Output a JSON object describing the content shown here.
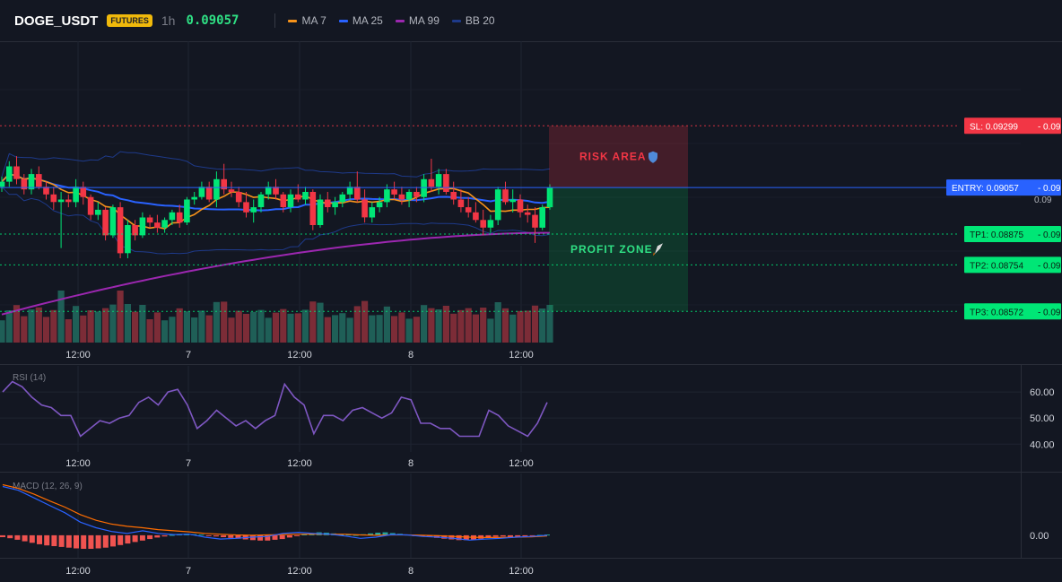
{
  "header": {
    "symbol": "DOGE_USDT",
    "badge": "FUTURES",
    "timeframe": "1h",
    "price": "0.09057",
    "indicators": [
      {
        "label": "MA 7",
        "color": "#f7931a"
      },
      {
        "label": "MA 25",
        "color": "#2962ff"
      },
      {
        "label": "MA 99",
        "color": "#9c27b0"
      },
      {
        "label": "BB 20",
        "color": "#1e3a8a"
      }
    ]
  },
  "time_labels": [
    "12:00",
    "7",
    "12:00",
    "8",
    "12:00"
  ],
  "levels": {
    "sl": {
      "label": "SL: 0.09299",
      "short": "0.09",
      "value": 0.09299,
      "color": "#f23645"
    },
    "entry": {
      "label": "ENTRY: 0.09057",
      "short": "0.09",
      "value": 0.09057,
      "color": "#2962ff"
    },
    "tp1": {
      "label": "TP1: 0.08875",
      "short": "0.09",
      "value": 0.08875,
      "color": "#00e676"
    },
    "tp2": {
      "label": "TP2: 0.08754",
      "short": "0.09",
      "value": 0.08754,
      "color": "#00e676"
    },
    "tp3": {
      "label": "TP3: 0.08572",
      "short": "0.09",
      "value": 0.08572,
      "color": "#00e676"
    }
  },
  "price_axis_label": "0.09",
  "zones": {
    "risk_label": "RISK AREA",
    "risk_icon": "shield-icon",
    "profit_label": "PROFIT ZONE",
    "profit_icon": "rocket-icon"
  },
  "rsi": {
    "title": "RSI (14)",
    "ticks": [
      "60.00",
      "50.00",
      "40.00"
    ],
    "tick_values": [
      60,
      50,
      40
    ],
    "ylim": [
      37,
      70
    ],
    "color": "#7e57c2"
  },
  "macd": {
    "title": "MACD (12, 26, 9)",
    "ticks": [
      "0.00"
    ],
    "ylim": [
      -0.0006,
      0.0016
    ],
    "macd_color": "#2962ff",
    "signal_color": "#ff6d00",
    "hist_neg_color": "#ef5350",
    "hist_pos_color": "#26a69a"
  },
  "chart_data": [
    {
      "type": "candlestick",
      "title": "DOGE_USDT 1h",
      "ylim": [
        0.0845,
        0.0963
      ],
      "up_color": "#00e676",
      "down_color": "#f23645",
      "candles": [
        [
          0.0906,
          0.091,
          0.0904,
          0.0908
        ],
        [
          0.0908,
          0.0916,
          0.0906,
          0.0914
        ],
        [
          0.0914,
          0.0918,
          0.0907,
          0.0909
        ],
        [
          0.0909,
          0.0911,
          0.0903,
          0.0905
        ],
        [
          0.0905,
          0.0913,
          0.0903,
          0.0911
        ],
        [
          0.0911,
          0.0914,
          0.0905,
          0.0906
        ],
        [
          0.0906,
          0.0908,
          0.0901,
          0.0903
        ],
        [
          0.0903,
          0.0906,
          0.0897,
          0.09
        ],
        [
          0.09,
          0.0904,
          0.0882,
          0.0901
        ],
        [
          0.0901,
          0.0903,
          0.0898,
          0.09
        ],
        [
          0.09,
          0.0909,
          0.0898,
          0.0906
        ],
        [
          0.0906,
          0.0908,
          0.0899,
          0.0902
        ],
        [
          0.0902,
          0.0903,
          0.0893,
          0.0895
        ],
        [
          0.0895,
          0.09,
          0.0893,
          0.0897
        ],
        [
          0.0897,
          0.0898,
          0.0885,
          0.0887
        ],
        [
          0.0887,
          0.0899,
          0.0886,
          0.0898
        ],
        [
          0.0898,
          0.09,
          0.0878,
          0.088
        ],
        [
          0.088,
          0.0893,
          0.0878,
          0.0891
        ],
        [
          0.0891,
          0.0893,
          0.0885,
          0.0887
        ],
        [
          0.0887,
          0.0896,
          0.0886,
          0.0894
        ],
        [
          0.0894,
          0.0895,
          0.089,
          0.0892
        ],
        [
          0.0892,
          0.0895,
          0.0888,
          0.089
        ],
        [
          0.089,
          0.0894,
          0.0888,
          0.0893
        ],
        [
          0.0893,
          0.0897,
          0.0891,
          0.0896
        ],
        [
          0.0896,
          0.0899,
          0.089,
          0.0892
        ],
        [
          0.0892,
          0.0902,
          0.0891,
          0.0901
        ],
        [
          0.0901,
          0.0904,
          0.0899,
          0.0902
        ],
        [
          0.0902,
          0.0908,
          0.0901,
          0.0906
        ],
        [
          0.0906,
          0.0908,
          0.09,
          0.0901
        ],
        [
          0.0901,
          0.0912,
          0.0898,
          0.0909
        ],
        [
          0.0909,
          0.0915,
          0.0903,
          0.0905
        ],
        [
          0.0905,
          0.0908,
          0.0902,
          0.0904
        ],
        [
          0.0904,
          0.0906,
          0.0898,
          0.09
        ],
        [
          0.09,
          0.0904,
          0.0894,
          0.0896
        ],
        [
          0.0896,
          0.0901,
          0.0892,
          0.0898
        ],
        [
          0.0898,
          0.0904,
          0.0896,
          0.0903
        ],
        [
          0.0903,
          0.0908,
          0.0901,
          0.0906
        ],
        [
          0.0906,
          0.0909,
          0.0901,
          0.0903
        ],
        [
          0.0903,
          0.0904,
          0.0896,
          0.0898
        ],
        [
          0.0898,
          0.0905,
          0.0896,
          0.0903
        ],
        [
          0.0903,
          0.0907,
          0.09,
          0.0901
        ],
        [
          0.0901,
          0.0906,
          0.0899,
          0.0904
        ],
        [
          0.0904,
          0.0905,
          0.0889,
          0.0891
        ],
        [
          0.0891,
          0.0903,
          0.089,
          0.0901
        ],
        [
          0.0901,
          0.0904,
          0.0896,
          0.0898
        ],
        [
          0.0898,
          0.0902,
          0.0895,
          0.09
        ],
        [
          0.09,
          0.0904,
          0.0898,
          0.0903
        ],
        [
          0.0903,
          0.0908,
          0.0901,
          0.0906
        ],
        [
          0.0906,
          0.0912,
          0.09,
          0.0901
        ],
        [
          0.0901,
          0.0905,
          0.0892,
          0.0894
        ],
        [
          0.0894,
          0.09,
          0.0892,
          0.0898
        ],
        [
          0.0898,
          0.0902,
          0.0896,
          0.09
        ],
        [
          0.09,
          0.0907,
          0.0898,
          0.0905
        ],
        [
          0.0905,
          0.0908,
          0.0901,
          0.0903
        ],
        [
          0.0903,
          0.0906,
          0.0899,
          0.0901
        ],
        [
          0.0901,
          0.0905,
          0.0898,
          0.0904
        ],
        [
          0.0904,
          0.0906,
          0.09,
          0.0902
        ],
        [
          0.0902,
          0.0911,
          0.09,
          0.0909
        ],
        [
          0.0909,
          0.0917,
          0.0904,
          0.0906
        ],
        [
          0.0906,
          0.0913,
          0.0903,
          0.0911
        ],
        [
          0.0911,
          0.0913,
          0.0903,
          0.0904
        ],
        [
          0.0904,
          0.0908,
          0.0899,
          0.0901
        ],
        [
          0.0901,
          0.0905,
          0.0896,
          0.0898
        ],
        [
          0.0898,
          0.0902,
          0.0894,
          0.0896
        ],
        [
          0.0896,
          0.09,
          0.0892,
          0.0893
        ],
        [
          0.0893,
          0.0897,
          0.0887,
          0.089
        ],
        [
          0.089,
          0.0895,
          0.0888,
          0.0893
        ],
        [
          0.0893,
          0.0906,
          0.0891,
          0.0905
        ],
        [
          0.0905,
          0.0908,
          0.0899,
          0.09
        ],
        [
          0.09,
          0.0905,
          0.0896,
          0.0901
        ],
        [
          0.0901,
          0.0903,
          0.0894,
          0.0896
        ],
        [
          0.0896,
          0.0899,
          0.0892,
          0.0895
        ],
        [
          0.0895,
          0.0898,
          0.0884,
          0.089
        ],
        [
          0.089,
          0.0899,
          0.0889,
          0.0898
        ],
        [
          0.0898,
          0.0907,
          0.0897,
          0.09057
        ]
      ]
    },
    {
      "type": "line",
      "title": "RSI (14)",
      "ylim": [
        37,
        70
      ],
      "values": [
        60,
        64,
        62,
        58,
        55,
        54,
        51,
        51,
        43,
        46,
        49,
        48,
        50,
        51,
        56,
        58,
        55,
        60,
        61,
        55,
        46,
        49,
        53,
        50,
        47,
        49,
        46,
        49,
        51,
        63,
        58,
        55,
        44,
        51,
        51,
        49,
        53,
        54,
        52,
        50,
        52,
        58,
        57,
        48,
        48,
        46,
        46,
        43,
        43,
        43,
        53,
        51,
        47,
        45,
        43,
        48,
        56
      ]
    },
    {
      "type": "bar",
      "title": "MACD (12, 26, 9)",
      "histogram": [
        -5e-05,
        -8e-05,
        -0.00012,
        -0.00016,
        -0.0002,
        -0.00024,
        -0.00027,
        -0.00029,
        -0.00031,
        -0.00033,
        -0.00035,
        -0.00036,
        -0.00036,
        -0.00035,
        -0.00033,
        -0.0003,
        -0.00026,
        -0.00022,
        -0.00018,
        -0.00014,
        -0.0001,
        -6e-05,
        -3e-05,
        1e-05,
        3e-05,
        4e-05,
        3e-05,
        2e-05,
        -1e-05,
        -3e-05,
        -5e-05,
        -7e-05,
        -9e-05,
        -0.00011,
        -0.00013,
        -0.00014,
        -0.00014,
        -0.00012,
        -0.0001,
        -6e-05,
        -2e-05,
        3e-05,
        6e-05,
        8e-05,
        7e-05,
        5e-05,
        3e-05,
        2e-05,
        1e-05,
        3e-05,
        5e-05,
        7e-05,
        8e-05,
        6e-05,
        4e-05,
        2e-05,
        -1e-05,
        -3e-05,
        -5e-05,
        -7e-05,
        -9e-05,
        -0.00011,
        -0.00013,
        -0.00013,
        -0.00011,
        -9e-05,
        -6e-05,
        -4e-05,
        -3e-05,
        -4e-05,
        -5e-05,
        -4e-05,
        -2e-05,
        1e-05,
        2e-05
      ],
      "macd": [
        0.0013,
        0.0012,
        0.001,
        0.0008,
        0.0006,
        0.00035,
        0.0002,
        0.0001,
        5e-05,
        0.00012,
        5e-05,
        2e-05,
        3e-05,
        -5e-05,
        -0.0001,
        -8e-05,
        -5e-05,
        -3e-05,
        5e-05,
        8e-05,
        5e-05,
        3e-05,
        -2e-05,
        -8e-05,
        -5e-05,
        2e-05,
        1e-05,
        -3e-05,
        -5e-05,
        -8e-05,
        -0.00013,
        -0.0001,
        -8e-05,
        -5e-05,
        -3e-05,
        0.0
      ],
      "signal": [
        0.00135,
        0.00125,
        0.0011,
        0.00092,
        0.00075,
        0.00055,
        0.0004,
        0.0003,
        0.00024,
        0.0002,
        0.00015,
        0.00012,
        9e-05,
        5e-05,
        3e-05,
        1e-05,
        0.0,
        1e-05,
        2e-05,
        3e-05,
        3e-05,
        3e-05,
        3e-05,
        1e-05,
        0.0,
        1e-05,
        1e-05,
        0.0,
        -1e-05,
        -3e-05,
        -5e-05,
        -6e-05,
        -6e-05,
        -5e-05,
        -4e-05,
        -2e-05
      ]
    }
  ]
}
